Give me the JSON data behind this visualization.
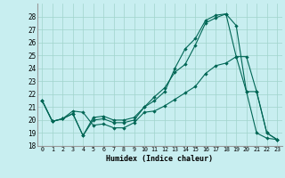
{
  "xlabel": "Humidex (Indice chaleur)",
  "bg_color": "#c8eef0",
  "grid_color": "#a0d4cc",
  "line_color": "#006655",
  "xlim": [
    -0.5,
    23.5
  ],
  "ylim": [
    18,
    29
  ],
  "xticks": [
    0,
    1,
    2,
    3,
    4,
    5,
    6,
    7,
    8,
    9,
    10,
    11,
    12,
    13,
    14,
    15,
    16,
    17,
    18,
    19,
    20,
    21,
    22,
    23
  ],
  "yticks": [
    18,
    19,
    20,
    21,
    22,
    23,
    24,
    25,
    26,
    27,
    28
  ],
  "curve1": {
    "x": [
      0,
      1,
      2,
      3,
      4,
      5,
      6,
      7,
      8,
      9,
      10,
      11,
      12,
      13,
      14,
      15,
      16,
      17,
      18,
      19,
      20,
      21,
      22,
      23
    ],
    "y": [
      21.5,
      19.9,
      20.1,
      20.5,
      18.8,
      20.2,
      20.3,
      20.0,
      20.0,
      20.2,
      21.0,
      21.5,
      22.2,
      24.0,
      25.5,
      26.3,
      27.7,
      28.1,
      28.2,
      27.3,
      22.2,
      19.0,
      18.6,
      18.5
    ]
  },
  "curve2": {
    "x": [
      0,
      1,
      2,
      3,
      4,
      5,
      6,
      7,
      8,
      9,
      10,
      11,
      12,
      13,
      14,
      15,
      16,
      17,
      18,
      19,
      20,
      21,
      22,
      23
    ],
    "y": [
      21.5,
      19.9,
      20.1,
      20.5,
      18.8,
      20.0,
      20.1,
      19.8,
      19.8,
      20.0,
      21.0,
      21.8,
      22.5,
      23.7,
      24.3,
      25.8,
      27.5,
      27.9,
      28.2,
      24.9,
      22.2,
      22.2,
      19.0,
      18.5
    ]
  },
  "curve3": {
    "x": [
      0,
      1,
      2,
      3,
      4,
      5,
      6,
      7,
      8,
      9,
      10,
      11,
      12,
      13,
      14,
      15,
      16,
      17,
      18,
      19,
      20,
      21,
      22,
      23
    ],
    "y": [
      21.5,
      19.9,
      20.1,
      20.7,
      20.6,
      19.6,
      19.7,
      19.4,
      19.4,
      19.8,
      20.6,
      20.7,
      21.1,
      21.6,
      22.1,
      22.6,
      23.6,
      24.2,
      24.4,
      24.9,
      24.9,
      22.2,
      19.0,
      18.5
    ]
  }
}
